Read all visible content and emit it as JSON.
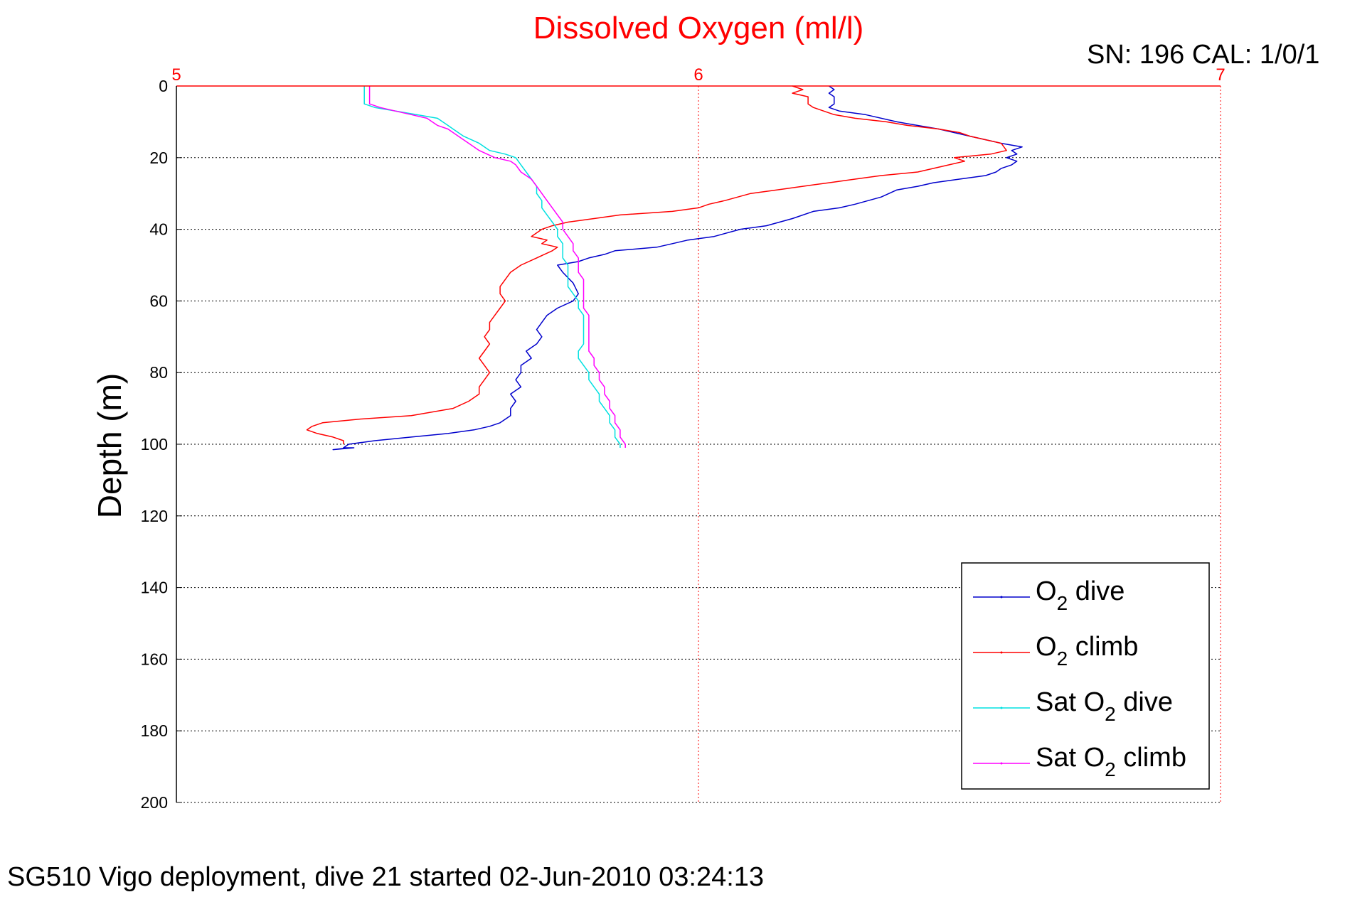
{
  "chart_data": {
    "type": "line",
    "title": "Dissolved Oxygen (ml/l)",
    "serial_label": "SN: 196  CAL: 1/0/1",
    "ylabel": "Depth (m)",
    "caption": "SG510 Vigo deployment, dive 21 started 02-Jun-2010 03:24:13",
    "xlim": [
      5,
      7
    ],
    "ylim": [
      0,
      200
    ],
    "y_reversed": true,
    "x_axis_position": "top",
    "grid": true,
    "x_ticks": [
      "5",
      "6",
      "7"
    ],
    "y_ticks": [
      "0",
      "20",
      "40",
      "60",
      "80",
      "100",
      "120",
      "140",
      "160",
      "180",
      "200"
    ],
    "legend_placement": "bottom-right",
    "series": [
      {
        "legend_main": "O",
        "legend_sub": "2",
        "legend_tail": " dive",
        "color": "#0000cc",
        "points": [
          [
            6.25,
            0
          ],
          [
            6.26,
            1
          ],
          [
            6.25,
            2
          ],
          [
            6.26,
            3
          ],
          [
            6.26,
            5
          ],
          [
            6.25,
            6
          ],
          [
            6.27,
            7
          ],
          [
            6.32,
            8
          ],
          [
            6.38,
            10
          ],
          [
            6.46,
            12
          ],
          [
            6.52,
            14
          ],
          [
            6.58,
            16
          ],
          [
            6.62,
            17
          ],
          [
            6.6,
            18
          ],
          [
            6.61,
            19
          ],
          [
            6.59,
            20
          ],
          [
            6.61,
            21
          ],
          [
            6.6,
            22
          ],
          [
            6.58,
            23
          ],
          [
            6.57,
            24
          ],
          [
            6.55,
            25
          ],
          [
            6.5,
            26
          ],
          [
            6.45,
            27
          ],
          [
            6.42,
            28
          ],
          [
            6.38,
            29
          ],
          [
            6.35,
            31
          ],
          [
            6.3,
            33
          ],
          [
            6.27,
            34
          ],
          [
            6.22,
            35
          ],
          [
            6.18,
            37
          ],
          [
            6.13,
            39
          ],
          [
            6.08,
            40
          ],
          [
            6.03,
            42
          ],
          [
            5.98,
            43
          ],
          [
            5.95,
            44
          ],
          [
            5.92,
            45
          ],
          [
            5.84,
            46
          ],
          [
            5.82,
            47
          ],
          [
            5.79,
            48
          ],
          [
            5.77,
            49
          ],
          [
            5.73,
            50
          ],
          [
            5.74,
            52
          ],
          [
            5.76,
            55
          ],
          [
            5.77,
            58
          ],
          [
            5.76,
            60
          ],
          [
            5.73,
            62
          ],
          [
            5.71,
            64
          ],
          [
            5.7,
            66
          ],
          [
            5.69,
            68
          ],
          [
            5.7,
            70
          ],
          [
            5.69,
            72
          ],
          [
            5.67,
            74
          ],
          [
            5.68,
            76
          ],
          [
            5.66,
            78
          ],
          [
            5.66,
            80
          ],
          [
            5.65,
            82
          ],
          [
            5.66,
            84
          ],
          [
            5.64,
            86
          ],
          [
            5.65,
            88
          ],
          [
            5.64,
            90
          ],
          [
            5.64,
            92
          ],
          [
            5.62,
            94
          ],
          [
            5.6,
            95
          ],
          [
            5.57,
            96
          ],
          [
            5.52,
            97
          ],
          [
            5.45,
            98
          ],
          [
            5.38,
            99
          ],
          [
            5.33,
            100
          ],
          [
            5.32,
            101
          ],
          [
            5.34,
            101
          ],
          [
            5.3,
            101.5
          ],
          [
            5.33,
            101
          ]
        ]
      },
      {
        "legend_main": "O",
        "legend_sub": "2",
        "legend_tail": " climb",
        "color": "#ff0000",
        "points": [
          [
            6.18,
            0
          ],
          [
            6.2,
            1
          ],
          [
            6.18,
            2
          ],
          [
            6.21,
            3
          ],
          [
            6.21,
            5
          ],
          [
            6.22,
            6
          ],
          [
            6.26,
            8
          ],
          [
            6.3,
            9
          ],
          [
            6.36,
            10
          ],
          [
            6.4,
            11
          ],
          [
            6.46,
            12
          ],
          [
            6.5,
            13
          ],
          [
            6.52,
            14
          ],
          [
            6.55,
            15
          ],
          [
            6.58,
            16
          ],
          [
            6.59,
            18
          ],
          [
            6.56,
            19
          ],
          [
            6.49,
            20
          ],
          [
            6.51,
            21
          ],
          [
            6.48,
            22
          ],
          [
            6.42,
            24
          ],
          [
            6.35,
            25
          ],
          [
            6.3,
            26
          ],
          [
            6.25,
            27
          ],
          [
            6.2,
            28
          ],
          [
            6.15,
            29
          ],
          [
            6.1,
            30
          ],
          [
            6.05,
            32
          ],
          [
            6.02,
            33
          ],
          [
            6.0,
            34
          ],
          [
            5.95,
            35
          ],
          [
            5.85,
            36
          ],
          [
            5.8,
            37
          ],
          [
            5.75,
            38
          ],
          [
            5.72,
            39
          ],
          [
            5.7,
            40
          ],
          [
            5.69,
            41
          ],
          [
            5.68,
            42
          ],
          [
            5.71,
            43
          ],
          [
            5.7,
            44
          ],
          [
            5.73,
            45
          ],
          [
            5.72,
            46
          ],
          [
            5.69,
            48
          ],
          [
            5.66,
            50
          ],
          [
            5.64,
            52
          ],
          [
            5.63,
            54
          ],
          [
            5.62,
            56
          ],
          [
            5.62,
            58
          ],
          [
            5.63,
            60
          ],
          [
            5.62,
            62
          ],
          [
            5.61,
            64
          ],
          [
            5.6,
            66
          ],
          [
            5.6,
            68
          ],
          [
            5.59,
            70
          ],
          [
            5.6,
            72
          ],
          [
            5.59,
            74
          ],
          [
            5.58,
            76
          ],
          [
            5.59,
            78
          ],
          [
            5.6,
            80
          ],
          [
            5.59,
            82
          ],
          [
            5.58,
            84
          ],
          [
            5.58,
            86
          ],
          [
            5.56,
            88
          ],
          [
            5.53,
            90
          ],
          [
            5.45,
            92
          ],
          [
            5.35,
            93
          ],
          [
            5.28,
            94
          ],
          [
            5.26,
            95
          ],
          [
            5.25,
            96
          ],
          [
            5.27,
            97
          ],
          [
            5.3,
            98
          ],
          [
            5.32,
            99
          ],
          [
            5.32,
            100
          ]
        ]
      },
      {
        "legend_main": "Sat O",
        "legend_sub": "2",
        "legend_tail": " dive",
        "color": "#00e0e0",
        "points": [
          [
            5.36,
            0
          ],
          [
            5.36,
            2
          ],
          [
            5.36,
            5
          ],
          [
            5.38,
            6
          ],
          [
            5.42,
            7
          ],
          [
            5.46,
            8
          ],
          [
            5.5,
            9
          ],
          [
            5.52,
            11
          ],
          [
            5.53,
            12
          ],
          [
            5.55,
            14
          ],
          [
            5.58,
            16
          ],
          [
            5.6,
            18
          ],
          [
            5.63,
            19
          ],
          [
            5.65,
            20
          ],
          [
            5.66,
            22
          ],
          [
            5.67,
            24
          ],
          [
            5.68,
            26
          ],
          [
            5.69,
            28
          ],
          [
            5.69,
            30
          ],
          [
            5.7,
            32
          ],
          [
            5.7,
            34
          ],
          [
            5.71,
            36
          ],
          [
            5.72,
            38
          ],
          [
            5.73,
            40
          ],
          [
            5.73,
            42
          ],
          [
            5.74,
            44
          ],
          [
            5.74,
            46
          ],
          [
            5.74,
            48
          ],
          [
            5.75,
            50
          ],
          [
            5.75,
            52
          ],
          [
            5.75,
            54
          ],
          [
            5.75,
            56
          ],
          [
            5.76,
            58
          ],
          [
            5.77,
            60
          ],
          [
            5.77,
            62
          ],
          [
            5.78,
            64
          ],
          [
            5.78,
            66
          ],
          [
            5.78,
            68
          ],
          [
            5.78,
            70
          ],
          [
            5.78,
            72
          ],
          [
            5.77,
            74
          ],
          [
            5.77,
            76
          ],
          [
            5.78,
            78
          ],
          [
            5.79,
            80
          ],
          [
            5.79,
            82
          ],
          [
            5.8,
            84
          ],
          [
            5.81,
            86
          ],
          [
            5.81,
            88
          ],
          [
            5.82,
            90
          ],
          [
            5.83,
            92
          ],
          [
            5.83,
            94
          ],
          [
            5.84,
            96
          ],
          [
            5.84,
            98
          ],
          [
            5.85,
            100
          ],
          [
            5.85,
            101
          ]
        ]
      },
      {
        "legend_main": "Sat O",
        "legend_sub": "2",
        "legend_tail": " climb",
        "color": "#ff00ff",
        "points": [
          [
            5.37,
            0
          ],
          [
            5.37,
            2
          ],
          [
            5.37,
            5
          ],
          [
            5.39,
            6
          ],
          [
            5.42,
            7
          ],
          [
            5.45,
            8
          ],
          [
            5.48,
            9
          ],
          [
            5.5,
            11
          ],
          [
            5.52,
            12
          ],
          [
            5.54,
            14
          ],
          [
            5.56,
            16
          ],
          [
            5.58,
            18
          ],
          [
            5.61,
            20
          ],
          [
            5.64,
            21
          ],
          [
            5.65,
            22
          ],
          [
            5.66,
            24
          ],
          [
            5.68,
            26
          ],
          [
            5.69,
            28
          ],
          [
            5.7,
            30
          ],
          [
            5.71,
            32
          ],
          [
            5.72,
            34
          ],
          [
            5.73,
            36
          ],
          [
            5.74,
            38
          ],
          [
            5.74,
            40
          ],
          [
            5.75,
            42
          ],
          [
            5.76,
            44
          ],
          [
            5.76,
            46
          ],
          [
            5.77,
            48
          ],
          [
            5.77,
            50
          ],
          [
            5.77,
            52
          ],
          [
            5.78,
            54
          ],
          [
            5.78,
            56
          ],
          [
            5.78,
            58
          ],
          [
            5.78,
            60
          ],
          [
            5.78,
            62
          ],
          [
            5.79,
            64
          ],
          [
            5.79,
            66
          ],
          [
            5.79,
            68
          ],
          [
            5.79,
            70
          ],
          [
            5.79,
            72
          ],
          [
            5.79,
            74
          ],
          [
            5.8,
            76
          ],
          [
            5.8,
            78
          ],
          [
            5.81,
            80
          ],
          [
            5.81,
            82
          ],
          [
            5.82,
            84
          ],
          [
            5.82,
            86
          ],
          [
            5.83,
            88
          ],
          [
            5.83,
            90
          ],
          [
            5.84,
            92
          ],
          [
            5.84,
            94
          ],
          [
            5.85,
            96
          ],
          [
            5.85,
            98
          ],
          [
            5.86,
            100
          ],
          [
            5.86,
            101
          ]
        ]
      }
    ]
  }
}
